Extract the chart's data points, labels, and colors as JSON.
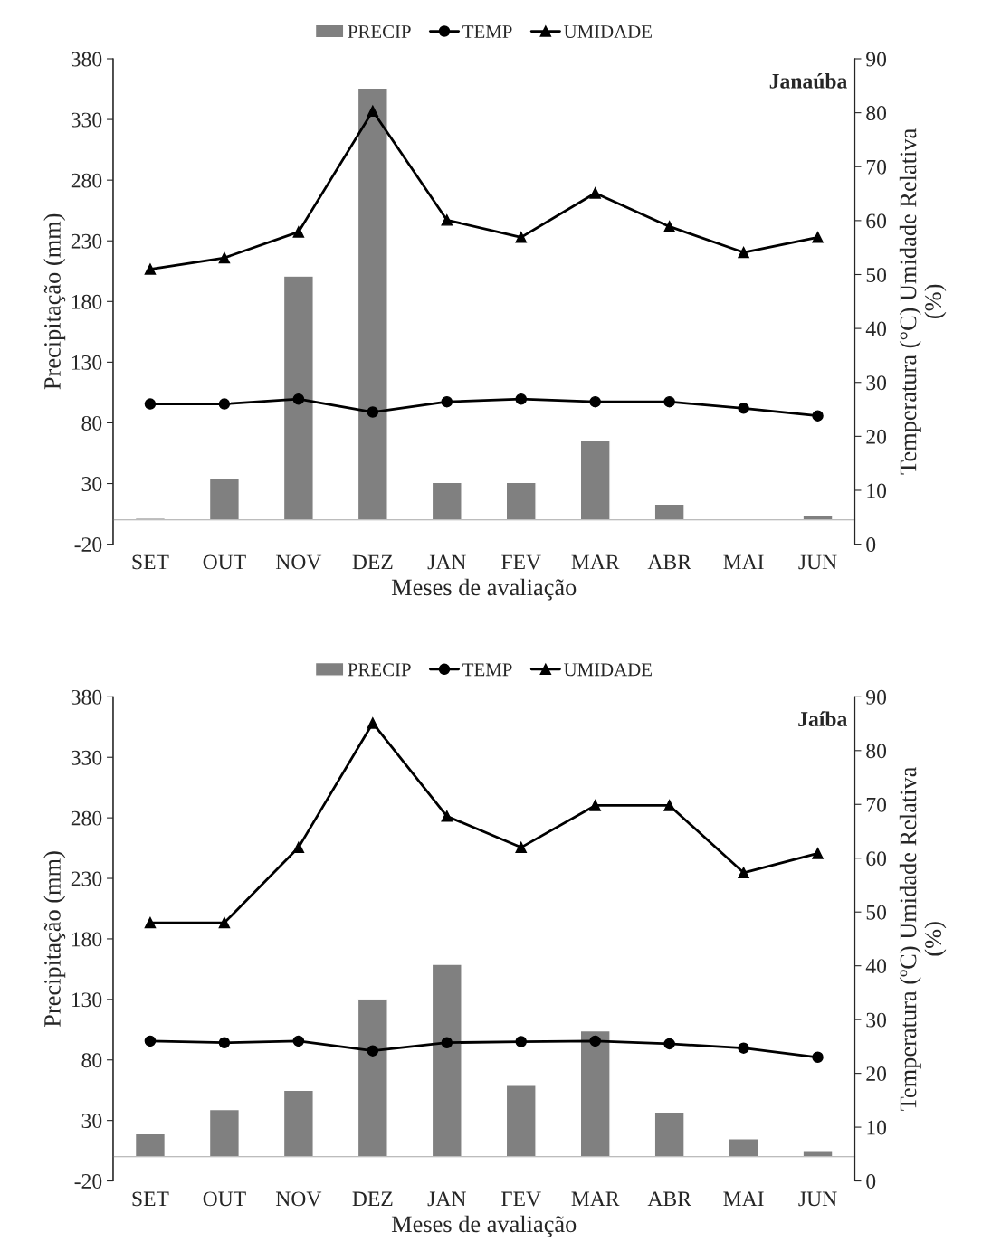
{
  "chart_data": [
    {
      "type": "bar",
      "title": "Janaúba",
      "xlabel": "Meses de avaliação",
      "ylabel": "Precipitação (mm)",
      "y2label": "Temperatura (°C) Umidade Relativa\n(%)",
      "categories": [
        "SET",
        "OUT",
        "NOV",
        "DEZ",
        "JAN",
        "FEV",
        "MAR",
        "ABR",
        "MAI",
        "JUN"
      ],
      "series": [
        {
          "name": "PRECIP",
          "color": "#808080",
          "values": [
            1.5,
            34,
            201,
            356,
            31,
            31,
            66,
            13,
            null,
            4
          ]
        },
        {
          "name": "TEMP",
          "type": "line",
          "axis": "y2",
          "marker": "circle",
          "color": "#000000",
          "values": [
            26.0,
            26.0,
            26.9,
            24.5,
            26.4,
            26.9,
            26.4,
            26.4,
            25.2,
            23.8
          ]
        },
        {
          "name": "UMIDADE",
          "type": "line",
          "axis": "y2",
          "marker": "triangle",
          "color": "#000000",
          "values": [
            51.0,
            53.1,
            57.9,
            80.3,
            60.1,
            56.9,
            65.1,
            58.9,
            54.1,
            56.9
          ]
        }
      ],
      "ylim": [
        -20,
        380
      ],
      "yticks": [
        -20,
        30,
        80,
        130,
        180,
        230,
        280,
        330,
        380
      ],
      "y2lim": [
        0,
        90
      ],
      "y2ticks": [
        0,
        10,
        20,
        30,
        40,
        50,
        60,
        70,
        80,
        90
      ],
      "legend": "top",
      "grid": false
    },
    {
      "type": "bar",
      "title": "Jaíba",
      "xlabel": "Meses de avaliação",
      "ylabel": "Precipitação (mm)",
      "y2label": "Temperatura (ºC) Umidade Relativa\n(%)",
      "categories": [
        "SET",
        "OUT",
        "NOV",
        "DEZ",
        "JAN",
        "FEV",
        "MAR",
        "ABR",
        "MAI",
        "JUN"
      ],
      "series": [
        {
          "name": "PRECIP",
          "color": "#808080",
          "values": [
            19,
            39,
            55,
            130,
            159,
            59,
            104,
            37,
            15,
            4.5
          ]
        },
        {
          "name": "TEMP",
          "type": "line",
          "axis": "y2",
          "marker": "circle",
          "color": "#000000",
          "values": [
            26.0,
            25.7,
            26.0,
            24.2,
            25.7,
            25.9,
            26.0,
            25.5,
            24.7,
            23.0
          ]
        },
        {
          "name": "UMIDADE",
          "type": "line",
          "axis": "y2",
          "marker": "triangle",
          "color": "#000000",
          "values": [
            48.0,
            48.0,
            62.0,
            85.1,
            67.8,
            62.0,
            69.8,
            69.8,
            57.3,
            60.9
          ]
        }
      ],
      "ylim": [
        -20,
        380
      ],
      "yticks": [
        -20,
        30,
        80,
        130,
        180,
        230,
        280,
        330,
        380
      ],
      "y2lim": [
        0,
        90
      ],
      "y2ticks": [
        0,
        10,
        20,
        30,
        40,
        50,
        60,
        70,
        80,
        90
      ],
      "legend": "top",
      "grid": false
    }
  ]
}
